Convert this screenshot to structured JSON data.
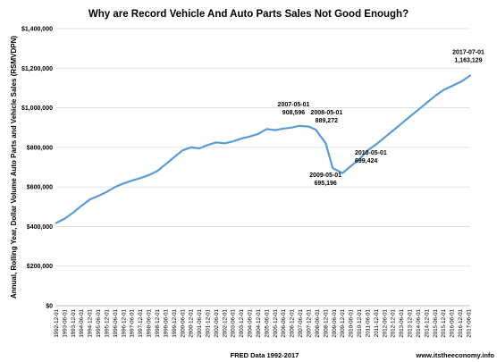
{
  "chart_data": {
    "type": "line",
    "title": "Why are Record Vehicle And Auto Parts Sales Not Good Enough?",
    "xlabel": "FRED Data 1992-2017",
    "ylabel": "Annual, Rolling Year, Dollar Volume Auto Parts and Vehicle Sales (RSMVDPN)",
    "source": "www.itstheeconomy.info",
    "x_start": "1992-12-01",
    "x_end": "2017-07-01",
    "ylim": [
      0,
      1400000
    ],
    "yticks": [
      "$0",
      "$200,000",
      "$400,000",
      "$600,000",
      "$800,000",
      "$1,000,000",
      "$1,200,000",
      "$1,400,000"
    ],
    "xticks": [
      "1992-12-01",
      "1993-06-01",
      "1993-12-01",
      "1994-06-01",
      "1994-12-01",
      "1995-06-01",
      "1995-12-01",
      "1996-06-01",
      "1996-12-01",
      "1997-06-01",
      "1997-12-01",
      "1998-06-01",
      "1998-12-01",
      "1999-06-01",
      "1999-12-01",
      "2000-06-01",
      "2000-12-01",
      "2001-06-01",
      "2001-12-01",
      "2002-06-01",
      "2002-12-01",
      "2003-06-01",
      "2003-12-01",
      "2004-06-01",
      "2004-12-01",
      "2005-06-01",
      "2005-12-01",
      "2006-06-01",
      "2006-12-01",
      "2007-06-01",
      "2007-12-01",
      "2008-06-01",
      "2008-12-01",
      "2009-06-01",
      "2009-12-01",
      "2010-06-01",
      "2010-12-01",
      "2011-06-01",
      "2011-12-01",
      "2012-06-01",
      "2012-12-01",
      "2013-06-01",
      "2013-12-01",
      "2014-06-01",
      "2014-12-01",
      "2015-06-01",
      "2015-12-01",
      "2016-06-01",
      "2016-12-01",
      "2017-06-01"
    ],
    "grid": true,
    "series": [
      {
        "color": "#5b9bd5",
        "points": [
          [
            "1992-12-01",
            418000
          ],
          [
            "1993-06-01",
            440000
          ],
          [
            "1993-12-01",
            470000
          ],
          [
            "1994-06-01",
            505000
          ],
          [
            "1994-12-01",
            537000
          ],
          [
            "1995-06-01",
            555000
          ],
          [
            "1995-12-01",
            575000
          ],
          [
            "1996-06-01",
            600000
          ],
          [
            "1996-12-01",
            618000
          ],
          [
            "1997-06-01",
            632000
          ],
          [
            "1997-12-01",
            645000
          ],
          [
            "1998-06-01",
            660000
          ],
          [
            "1998-12-01",
            680000
          ],
          [
            "1999-06-01",
            715000
          ],
          [
            "1999-12-01",
            750000
          ],
          [
            "2000-06-01",
            785000
          ],
          [
            "2000-12-01",
            800000
          ],
          [
            "2001-06-01",
            795000
          ],
          [
            "2001-12-01",
            812000
          ],
          [
            "2002-06-01",
            825000
          ],
          [
            "2002-12-01",
            820000
          ],
          [
            "2003-06-01",
            830000
          ],
          [
            "2003-12-01",
            845000
          ],
          [
            "2004-06-01",
            855000
          ],
          [
            "2004-12-01",
            868000
          ],
          [
            "2005-06-01",
            893000
          ],
          [
            "2005-12-01",
            887000
          ],
          [
            "2006-06-01",
            895000
          ],
          [
            "2006-12-01",
            900000
          ],
          [
            "2007-05-01",
            908596
          ],
          [
            "2007-12-01",
            905000
          ],
          [
            "2008-05-01",
            889272
          ],
          [
            "2008-12-01",
            820000
          ],
          [
            "2009-05-01",
            695196
          ],
          [
            "2009-12-01",
            670000
          ],
          [
            "2010-05-01",
            699424
          ],
          [
            "2010-12-01",
            740000
          ],
          [
            "2011-06-01",
            785000
          ],
          [
            "2011-12-01",
            815000
          ],
          [
            "2012-06-01",
            850000
          ],
          [
            "2012-12-01",
            885000
          ],
          [
            "2013-06-01",
            920000
          ],
          [
            "2013-12-01",
            955000
          ],
          [
            "2014-06-01",
            990000
          ],
          [
            "2014-12-01",
            1025000
          ],
          [
            "2015-06-01",
            1060000
          ],
          [
            "2015-12-01",
            1090000
          ],
          [
            "2016-06-01",
            1110000
          ],
          [
            "2016-12-01",
            1130000
          ],
          [
            "2017-07-01",
            1163129
          ]
        ]
      }
    ],
    "annotations": [
      {
        "date": "2007-05-01",
        "value_label": "908,596",
        "dx": -6,
        "dy": -22,
        "anchor": "middle"
      },
      {
        "date": "2008-05-01",
        "value_label": "889,272",
        "dx": 12,
        "dy": -17,
        "anchor": "middle"
      },
      {
        "date": "2009-05-01",
        "value_label": "695,196",
        "dx": -8,
        "dy": 10,
        "anchor": "middle"
      },
      {
        "date": "2010-05-01",
        "value_label": "699,424",
        "dx": 6,
        "dy": -14,
        "anchor": "start"
      },
      {
        "date": "2017-07-01",
        "value_label": "1,163,129",
        "dx": -2,
        "dy": -24,
        "anchor": "middle"
      }
    ]
  }
}
